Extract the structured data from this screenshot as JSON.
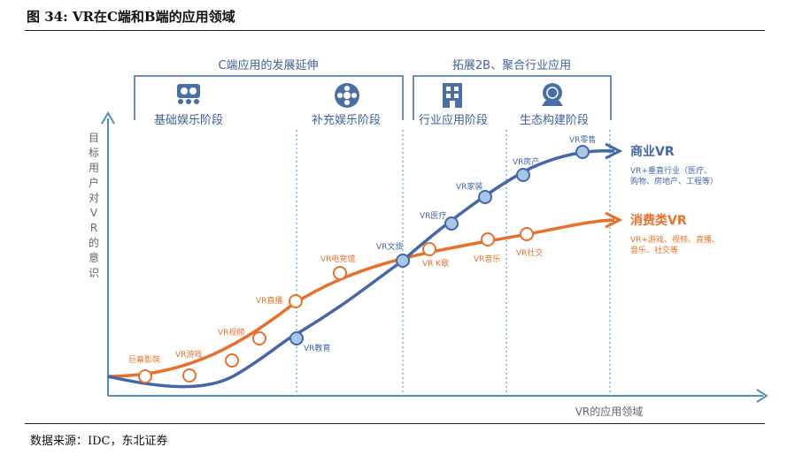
{
  "figure_title": "图 34: VR在C端和B端的应用领域",
  "source": "数据来源：IDC，东北证券",
  "top_groups": [
    {
      "label": "C端应用的发展延伸"
    },
    {
      "label": "拓展2B、聚合行业应用"
    }
  ],
  "stages": [
    {
      "label": "基础娱乐阶段",
      "icon": "vr-headset-icon"
    },
    {
      "label": "补充娱乐阶段",
      "icon": "film-reel-icon"
    },
    {
      "label": "行业应用阶段",
      "icon": "building-icon"
    },
    {
      "label": "生态构建阶段",
      "icon": "globe-ecosystem-icon"
    }
  ],
  "y_axis_label": [
    "目",
    "标",
    "用",
    "户",
    "对",
    "V",
    "R",
    "的",
    "意",
    "识"
  ],
  "x_axis_label": "VR的应用领域",
  "series": [
    {
      "name": "商业VR",
      "description": [
        "VR+垂直行业（医疗、",
        "购物、房地产、工程等）"
      ],
      "color": "#4466aa",
      "point_labels": [
        "VR教育",
        "VR文旅",
        "VR医疗",
        "VR家装",
        "VR房产",
        "VR零售"
      ]
    },
    {
      "name": "消费类VR",
      "description": [
        "VR+游戏、视频、直播、",
        "音乐、社交等"
      ],
      "color": "#e8702a",
      "point_labels": [
        "巨幕影院",
        "VR游戏",
        "VR视频",
        "VR直播",
        "VR电竞馆",
        "VR K歌",
        "VR音乐",
        "VR社交"
      ]
    }
  ],
  "colors": {
    "blue_axis": "#4a90c8",
    "bracket": "#5b7fb8",
    "dashed": "#5ba4d6"
  }
}
